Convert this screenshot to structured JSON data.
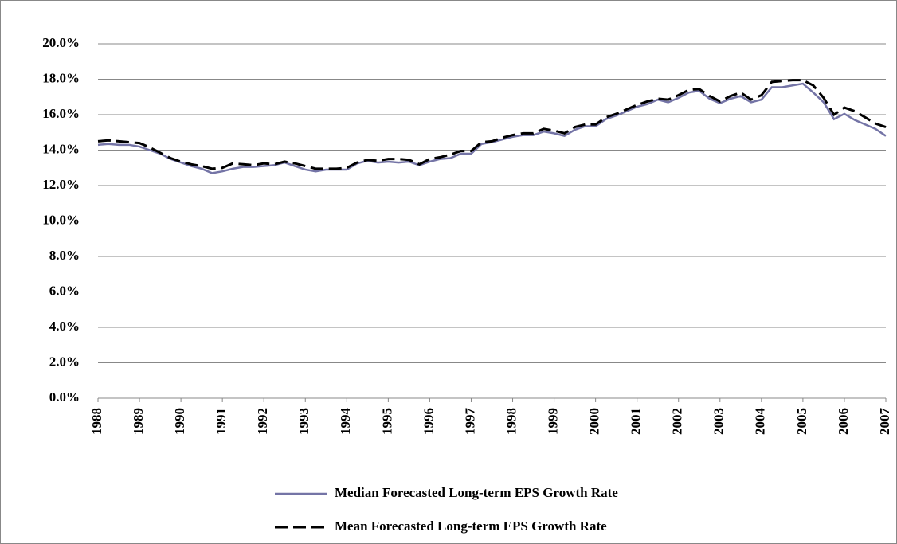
{
  "chart_data": {
    "type": "line",
    "categories": [
      "1988",
      null,
      null,
      null,
      "1989",
      null,
      null,
      null,
      "1990",
      null,
      null,
      null,
      "1991",
      null,
      null,
      null,
      "1992",
      null,
      null,
      null,
      "1993",
      null,
      null,
      null,
      "1994",
      null,
      null,
      null,
      "1995",
      null,
      null,
      null,
      "1996",
      null,
      null,
      null,
      "1997",
      null,
      null,
      null,
      "1998",
      null,
      null,
      null,
      "1999",
      null,
      null,
      null,
      "2000",
      null,
      null,
      null,
      "2001",
      null,
      null,
      null,
      "2002",
      null,
      null,
      null,
      "2003",
      null,
      null,
      null,
      "2004",
      null,
      null,
      null,
      "2005",
      null,
      null,
      null,
      "2006",
      null,
      null,
      null,
      "2007"
    ],
    "series": [
      {
        "name": "Median Forecasted Long-term EPS Growth Rate",
        "color": "#7474a6",
        "dash": false,
        "values": [
          14.3,
          14.35,
          14.3,
          14.3,
          14.2,
          14.0,
          13.8,
          13.5,
          13.3,
          13.1,
          12.95,
          12.7,
          12.8,
          12.95,
          13.05,
          13.05,
          13.1,
          13.15,
          13.3,
          13.1,
          12.9,
          12.8,
          12.9,
          12.9,
          12.9,
          13.25,
          13.4,
          13.3,
          13.35,
          13.3,
          13.35,
          13.15,
          13.35,
          13.5,
          13.55,
          13.8,
          13.8,
          14.35,
          14.45,
          14.6,
          14.75,
          14.85,
          14.85,
          15.05,
          14.95,
          14.8,
          15.15,
          15.35,
          15.35,
          15.75,
          15.95,
          16.2,
          16.45,
          16.6,
          16.85,
          16.7,
          16.95,
          17.25,
          17.35,
          16.9,
          16.65,
          16.9,
          17.05,
          16.7,
          16.85,
          17.55,
          17.55,
          17.65,
          17.75,
          17.25,
          16.7,
          15.75,
          16.05,
          15.7,
          15.45,
          15.2,
          14.8
        ]
      },
      {
        "name": "Mean Forecasted Long-term EPS Growth Rate",
        "color": "#000000",
        "dash": true,
        "values": [
          14.5,
          14.55,
          14.5,
          14.45,
          14.4,
          14.15,
          13.85,
          13.55,
          13.35,
          13.2,
          13.1,
          12.95,
          13.0,
          13.25,
          13.2,
          13.15,
          13.25,
          13.2,
          13.35,
          13.25,
          13.1,
          12.95,
          12.95,
          12.95,
          13.0,
          13.3,
          13.45,
          13.4,
          13.5,
          13.5,
          13.45,
          13.2,
          13.5,
          13.6,
          13.75,
          13.95,
          13.95,
          14.45,
          14.5,
          14.7,
          14.85,
          14.95,
          14.95,
          15.2,
          15.1,
          14.95,
          15.3,
          15.45,
          15.45,
          15.85,
          16.05,
          16.3,
          16.55,
          16.75,
          16.9,
          16.85,
          17.1,
          17.4,
          17.45,
          17.05,
          16.75,
          17.05,
          17.25,
          16.85,
          17.1,
          17.85,
          17.9,
          17.95,
          17.95,
          17.65,
          16.95,
          16.0,
          16.4,
          16.2,
          15.85,
          15.5,
          15.3
        ]
      }
    ],
    "ylim": [
      0,
      20
    ],
    "yticks": [
      {
        "value": 0,
        "label": "0.0%"
      },
      {
        "value": 2,
        "label": "2.0%"
      },
      {
        "value": 4,
        "label": "4.0%"
      },
      {
        "value": 6,
        "label": "6.0%"
      },
      {
        "value": 8,
        "label": "8.0%"
      },
      {
        "value": 10,
        "label": "10.0%"
      },
      {
        "value": 12,
        "label": "12.0%"
      },
      {
        "value": 14,
        "label": "14.0%"
      },
      {
        "value": 16,
        "label": "16.0%"
      },
      {
        "value": 18,
        "label": "18.0%"
      },
      {
        "value": 20,
        "label": "20.0%"
      }
    ],
    "grid": true
  }
}
